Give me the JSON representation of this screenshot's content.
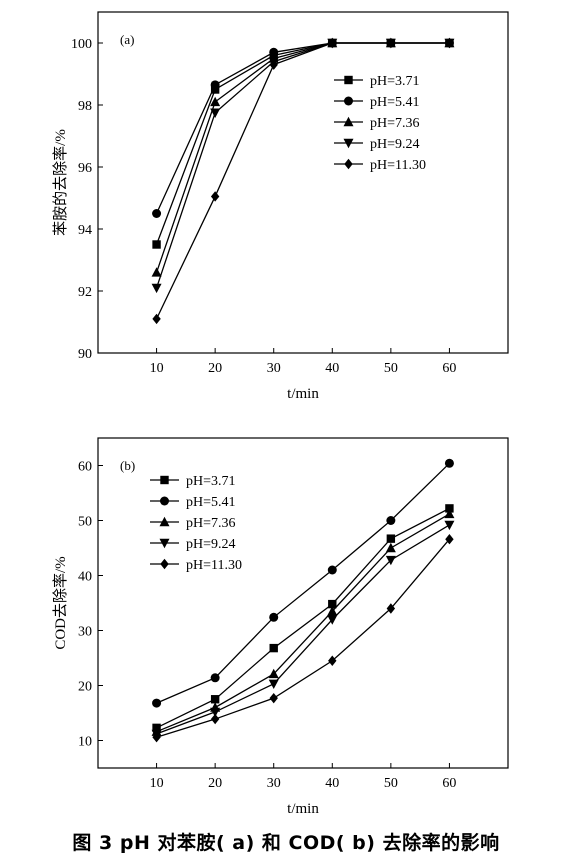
{
  "chart_data": [
    {
      "type": "line",
      "panel_label": "(a)",
      "xlabel": "t/min",
      "ylabel": "苯胺的去除率/%",
      "xlim": [
        0,
        70
      ],
      "ylim": [
        90,
        101
      ],
      "xticks": [
        10,
        20,
        30,
        40,
        50,
        60
      ],
      "yticks": [
        90,
        92,
        94,
        96,
        98,
        100
      ],
      "legend_position": "center-right",
      "x": [
        10,
        20,
        30,
        40,
        50,
        60
      ],
      "series": [
        {
          "name": "pH=3.71",
          "marker": "square",
          "values": [
            93.5,
            98.5,
            99.6,
            100,
            100,
            100
          ]
        },
        {
          "name": "pH=5.41",
          "marker": "circle",
          "values": [
            94.5,
            98.65,
            99.7,
            100,
            100,
            100
          ]
        },
        {
          "name": "pH=7.36",
          "marker": "triangle-up",
          "values": [
            92.6,
            98.1,
            99.5,
            100,
            100,
            100
          ]
        },
        {
          "name": "pH=9.24",
          "marker": "triangle-down",
          "values": [
            92.1,
            97.75,
            99.4,
            100,
            100,
            100
          ]
        },
        {
          "name": "pH=11.30",
          "marker": "diamond",
          "values": [
            91.1,
            95.05,
            99.3,
            100,
            100,
            100
          ]
        }
      ]
    },
    {
      "type": "line",
      "panel_label": "(b)",
      "xlabel": "t/min",
      "ylabel": "COD去除率/%",
      "xlim": [
        0,
        70
      ],
      "ylim": [
        5,
        65
      ],
      "xticks": [
        10,
        20,
        30,
        40,
        50,
        60
      ],
      "yticks": [
        10,
        20,
        30,
        40,
        50,
        60
      ],
      "legend_position": "top-left",
      "x": [
        10,
        20,
        30,
        40,
        50,
        60
      ],
      "series": [
        {
          "name": "pH=3.71",
          "marker": "square",
          "values": [
            12.3,
            17.5,
            26.8,
            34.8,
            46.7,
            52.2
          ]
        },
        {
          "name": "pH=5.41",
          "marker": "circle",
          "values": [
            16.8,
            21.4,
            32.4,
            41.0,
            50.0,
            60.4
          ]
        },
        {
          "name": "pH=7.36",
          "marker": "triangle-up",
          "values": [
            11.6,
            16.0,
            22.1,
            33.5,
            45.0,
            51.2
          ]
        },
        {
          "name": "pH=9.24",
          "marker": "triangle-down",
          "values": [
            11.2,
            15.2,
            20.3,
            32.0,
            42.8,
            49.2
          ]
        },
        {
          "name": "pH=11.30",
          "marker": "diamond",
          "values": [
            10.6,
            13.9,
            17.7,
            24.5,
            34.0,
            46.6
          ]
        }
      ]
    }
  ],
  "caption": "图 3    pH 对苯胺( a) 和 COD( b) 去除率的影响"
}
